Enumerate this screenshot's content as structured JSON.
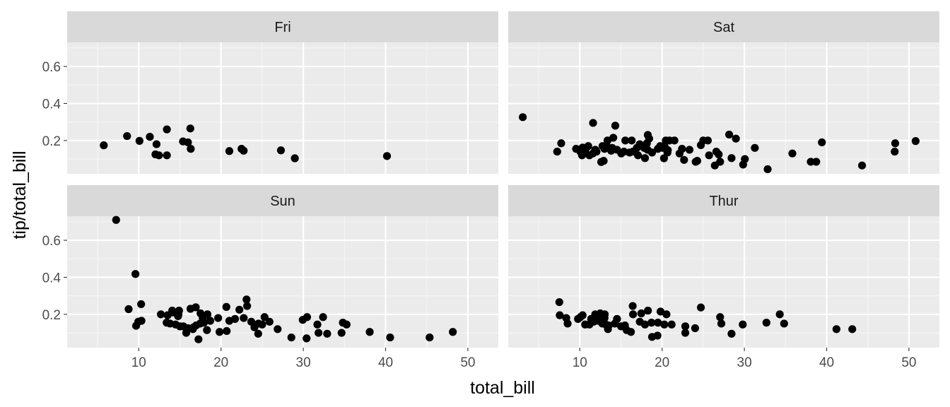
{
  "chart_data": {
    "type": "scatter",
    "xlabel": "total_bill",
    "ylabel": "tip/total_bill",
    "x_ticks": [
      10,
      20,
      30,
      40,
      50
    ],
    "y_ticks": [
      0.2,
      0.4,
      0.6
    ],
    "xlim": [
      1.3,
      53.7
    ],
    "ylim": [
      0.02,
      0.73
    ],
    "grid": true,
    "facets": [
      "Fri",
      "Sat",
      "Sun",
      "Thur"
    ],
    "panels": [
      {
        "label": "Fri",
        "points": [
          [
            5.75,
            0.174
          ],
          [
            8.58,
            0.224
          ],
          [
            10.09,
            0.198
          ],
          [
            11.35,
            0.22
          ],
          [
            12.03,
            0.125
          ],
          [
            12.16,
            0.18
          ],
          [
            12.46,
            0.12
          ],
          [
            13.42,
            0.26
          ],
          [
            13.42,
            0.12
          ],
          [
            15.38,
            0.195
          ],
          [
            15.98,
            0.19
          ],
          [
            16.27,
            0.265
          ],
          [
            16.32,
            0.155
          ],
          [
            21.01,
            0.143
          ],
          [
            22.49,
            0.155
          ],
          [
            22.75,
            0.145
          ],
          [
            27.28,
            0.147
          ],
          [
            28.97,
            0.104
          ],
          [
            40.17,
            0.116
          ]
        ]
      },
      {
        "label": "Sat",
        "points": [
          [
            3.07,
            0.326
          ],
          [
            7.25,
            0.14
          ],
          [
            7.74,
            0.185
          ],
          [
            9.55,
            0.155
          ],
          [
            10.07,
            0.14
          ],
          [
            10.27,
            0.12
          ],
          [
            10.34,
            0.162
          ],
          [
            10.51,
            0.143
          ],
          [
            10.65,
            0.14
          ],
          [
            10.77,
            0.16
          ],
          [
            11.02,
            0.17
          ],
          [
            11.17,
            0.12
          ],
          [
            11.59,
            0.13
          ],
          [
            11.61,
            0.295
          ],
          [
            11.87,
            0.15
          ],
          [
            12.03,
            0.14
          ],
          [
            12.6,
            0.084
          ],
          [
            12.76,
            0.17
          ],
          [
            12.9,
            0.09
          ],
          [
            13.0,
            0.155
          ],
          [
            13.28,
            0.17
          ],
          [
            13.37,
            0.2
          ],
          [
            13.81,
            0.145
          ],
          [
            13.94,
            0.16
          ],
          [
            14.07,
            0.215
          ],
          [
            14.31,
            0.28
          ],
          [
            14.52,
            0.15
          ],
          [
            15.04,
            0.13
          ],
          [
            15.36,
            0.14
          ],
          [
            15.53,
            0.2
          ],
          [
            16.04,
            0.135
          ],
          [
            16.31,
            0.2
          ],
          [
            16.45,
            0.14
          ],
          [
            16.93,
            0.16
          ],
          [
            17.07,
            0.12
          ],
          [
            17.29,
            0.18
          ],
          [
            17.82,
            0.16
          ],
          [
            17.92,
            0.105
          ],
          [
            18.15,
            0.185
          ],
          [
            18.24,
            0.15
          ],
          [
            18.26,
            0.23
          ],
          [
            18.43,
            0.21
          ],
          [
            18.78,
            0.135
          ],
          [
            19.49,
            0.155
          ],
          [
            19.77,
            0.17
          ],
          [
            20.08,
            0.16
          ],
          [
            20.23,
            0.104
          ],
          [
            20.29,
            0.17
          ],
          [
            20.45,
            0.2
          ],
          [
            20.65,
            0.135
          ],
          [
            20.69,
            0.148
          ],
          [
            20.9,
            0.2
          ],
          [
            21.5,
            0.2
          ],
          [
            22.12,
            0.13
          ],
          [
            22.42,
            0.155
          ],
          [
            22.67,
            0.095
          ],
          [
            23.33,
            0.15
          ],
          [
            24.08,
            0.085
          ],
          [
            24.27,
            0.09
          ],
          [
            24.71,
            0.175
          ],
          [
            25.0,
            0.2
          ],
          [
            25.56,
            0.2
          ],
          [
            25.71,
            0.12
          ],
          [
            26.41,
            0.065
          ],
          [
            26.59,
            0.14
          ],
          [
            26.88,
            0.125
          ],
          [
            27.05,
            0.085
          ],
          [
            28.15,
            0.232
          ],
          [
            28.44,
            0.105
          ],
          [
            28.97,
            0.21
          ],
          [
            29.85,
            0.07
          ],
          [
            30.06,
            0.1
          ],
          [
            31.27,
            0.16
          ],
          [
            32.83,
            0.045
          ],
          [
            35.83,
            0.13
          ],
          [
            38.07,
            0.085
          ],
          [
            38.73,
            0.085
          ],
          [
            39.42,
            0.19
          ],
          [
            44.3,
            0.065
          ],
          [
            48.27,
            0.14
          ],
          [
            48.33,
            0.185
          ],
          [
            50.81,
            0.197
          ]
        ]
      },
      {
        "label": "Sun",
        "points": [
          [
            7.25,
            0.71
          ],
          [
            8.77,
            0.228
          ],
          [
            9.6,
            0.418
          ],
          [
            9.68,
            0.138
          ],
          [
            9.94,
            0.16
          ],
          [
            10.29,
            0.255
          ],
          [
            10.33,
            0.165
          ],
          [
            12.69,
            0.2
          ],
          [
            13.39,
            0.155
          ],
          [
            13.51,
            0.195
          ],
          [
            13.81,
            0.15
          ],
          [
            14.07,
            0.22
          ],
          [
            14.15,
            0.21
          ],
          [
            14.48,
            0.145
          ],
          [
            14.78,
            0.19
          ],
          [
            14.83,
            0.2
          ],
          [
            14.9,
            0.22
          ],
          [
            15.01,
            0.135
          ],
          [
            15.42,
            0.135
          ],
          [
            15.77,
            0.1
          ],
          [
            16.0,
            0.125
          ],
          [
            16.29,
            0.23
          ],
          [
            16.58,
            0.12
          ],
          [
            16.66,
            0.13
          ],
          [
            16.93,
            0.238
          ],
          [
            16.97,
            0.14
          ],
          [
            17.26,
            0.065
          ],
          [
            17.46,
            0.15
          ],
          [
            17.51,
            0.205
          ],
          [
            17.78,
            0.18
          ],
          [
            17.92,
            0.155
          ],
          [
            18.29,
            0.115
          ],
          [
            18.35,
            0.2
          ],
          [
            18.69,
            0.165
          ],
          [
            19.65,
            0.18
          ],
          [
            19.82,
            0.105
          ],
          [
            20.65,
            0.24
          ],
          [
            20.69,
            0.11
          ],
          [
            21.01,
            0.165
          ],
          [
            21.7,
            0.175
          ],
          [
            22.23,
            0.225
          ],
          [
            22.76,
            0.18
          ],
          [
            23.1,
            0.28
          ],
          [
            23.17,
            0.245
          ],
          [
            23.68,
            0.16
          ],
          [
            24.06,
            0.13
          ],
          [
            24.52,
            0.095
          ],
          [
            24.55,
            0.15
          ],
          [
            25.0,
            0.145
          ],
          [
            25.29,
            0.185
          ],
          [
            25.89,
            0.16
          ],
          [
            26.88,
            0.12
          ],
          [
            28.55,
            0.075
          ],
          [
            29.93,
            0.17
          ],
          [
            30.4,
            0.07
          ],
          [
            30.46,
            0.185
          ],
          [
            31.71,
            0.145
          ],
          [
            31.85,
            0.1
          ],
          [
            32.4,
            0.185
          ],
          [
            32.9,
            0.095
          ],
          [
            34.65,
            0.1
          ],
          [
            34.81,
            0.155
          ],
          [
            35.26,
            0.145
          ],
          [
            38.07,
            0.105
          ],
          [
            40.55,
            0.075
          ],
          [
            45.35,
            0.075
          ],
          [
            48.17,
            0.105
          ]
        ]
      },
      {
        "label": "Thur",
        "points": [
          [
            7.51,
            0.266
          ],
          [
            7.56,
            0.195
          ],
          [
            8.35,
            0.18
          ],
          [
            8.52,
            0.15
          ],
          [
            9.78,
            0.175
          ],
          [
            10.07,
            0.185
          ],
          [
            10.34,
            0.195
          ],
          [
            10.65,
            0.145
          ],
          [
            11.17,
            0.145
          ],
          [
            11.38,
            0.175
          ],
          [
            11.69,
            0.16
          ],
          [
            11.87,
            0.2
          ],
          [
            12.26,
            0.165
          ],
          [
            12.43,
            0.18
          ],
          [
            12.48,
            0.205
          ],
          [
            12.74,
            0.15
          ],
          [
            13.0,
            0.18
          ],
          [
            13.03,
            0.2
          ],
          [
            13.16,
            0.145
          ],
          [
            13.42,
            0.12
          ],
          [
            13.51,
            0.14
          ],
          [
            14.26,
            0.15
          ],
          [
            14.52,
            0.175
          ],
          [
            15.01,
            0.135
          ],
          [
            15.48,
            0.14
          ],
          [
            15.69,
            0.115
          ],
          [
            16.21,
            0.105
          ],
          [
            16.43,
            0.245
          ],
          [
            16.47,
            0.2
          ],
          [
            17.29,
            0.16
          ],
          [
            17.47,
            0.205
          ],
          [
            17.92,
            0.145
          ],
          [
            18.28,
            0.22
          ],
          [
            18.71,
            0.155
          ],
          [
            18.78,
            0.078
          ],
          [
            19.44,
            0.085
          ],
          [
            19.49,
            0.155
          ],
          [
            19.81,
            0.215
          ],
          [
            20.27,
            0.145
          ],
          [
            20.53,
            0.2
          ],
          [
            21.16,
            0.145
          ],
          [
            22.82,
            0.135
          ],
          [
            22.82,
            0.1
          ],
          [
            24.01,
            0.125
          ],
          [
            24.71,
            0.237
          ],
          [
            27.05,
            0.185
          ],
          [
            27.2,
            0.15
          ],
          [
            28.44,
            0.095
          ],
          [
            29.8,
            0.145
          ],
          [
            32.68,
            0.155
          ],
          [
            34.3,
            0.2
          ],
          [
            34.83,
            0.15
          ],
          [
            41.19,
            0.12
          ],
          [
            43.11,
            0.12
          ]
        ]
      }
    ]
  }
}
